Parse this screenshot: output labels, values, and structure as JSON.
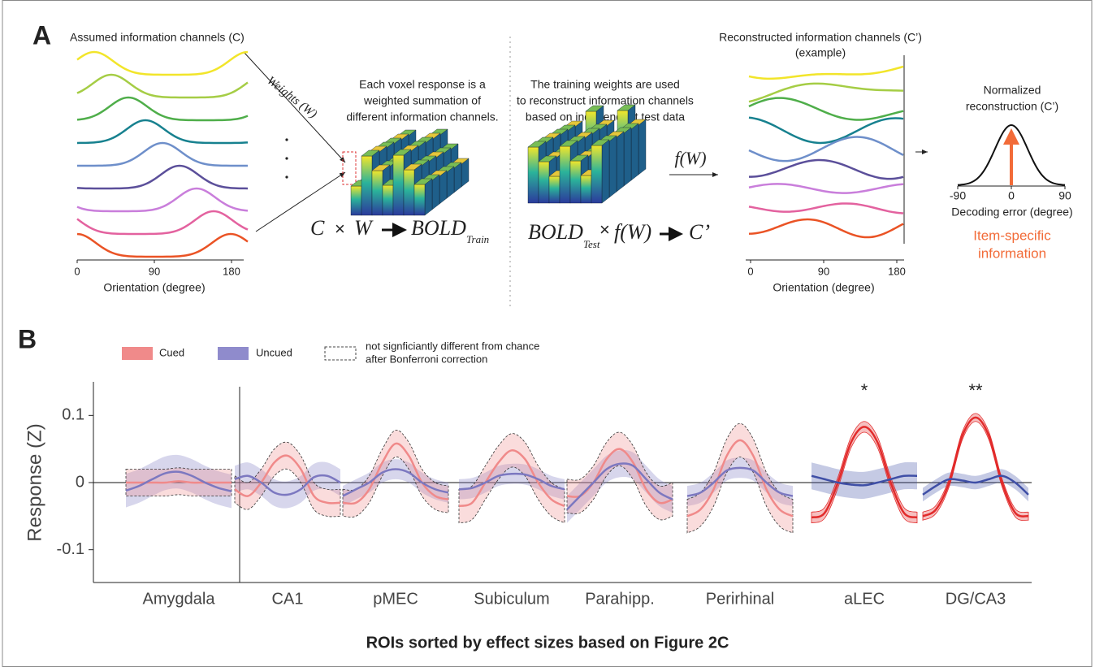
{
  "panel_a": {
    "label": "A",
    "left_title": "Assumed information channels (C)",
    "left_xticks": [
      0,
      90,
      180
    ],
    "x_label": "Orientation (degree)",
    "weights_label": "Weights (W)",
    "train_note": [
      "Each voxel response is a",
      "weighted summation of",
      "different information channels."
    ],
    "train_formula": {
      "c": "C",
      "times": "×",
      "w": "W",
      "bold": "BOLD",
      "sub": "Train"
    },
    "test_note": [
      "The training weights are used",
      "to reconstruct information channels",
      "based on independent test data"
    ],
    "fw": "f(W)",
    "test_formula": {
      "bold": "BOLD",
      "sub": "Test",
      "times": "×",
      "fw": "f(W)",
      "c": "C’"
    },
    "right_title": [
      "Reconstructed information channels (C’)",
      "(example)"
    ],
    "right_xticks": [
      0,
      90,
      180
    ],
    "norm_title": [
      "Normalized",
      "reconstruction (C’)"
    ],
    "norm_xticks": [
      -90,
      0,
      90
    ],
    "norm_x_label": "Decoding error (degree)",
    "item_label": [
      "Item-specific",
      "information"
    ]
  },
  "panel_b": {
    "label": "B",
    "legend": {
      "cued": "Cued",
      "uncued": "Uncued",
      "dashed_note": [
        "not signficiantly different from chance",
        "after Bonferroni correction"
      ]
    },
    "y_label": "Response (Z)",
    "ylim": [
      -0.15,
      0.15
    ],
    "yticks": [
      0.1,
      0,
      -0.1
    ],
    "x": [
      -90,
      -67.5,
      -45,
      -22.5,
      0,
      22.5,
      45,
      67.5,
      90
    ],
    "x_label": "ROIs sorted by effect sizes based on Figure 2C",
    "rois": [
      {
        "name": "Amygdala",
        "dashed": true,
        "cued_color": "#f08a8a",
        "uncued_color": "#7c78c0",
        "cued": [
          0,
          0,
          0,
          0,
          0.002,
          0,
          0,
          0,
          0
        ],
        "cued_ci": 0.02,
        "uncued": [
          -0.012,
          -0.005,
          0.005,
          0.014,
          0.016,
          0.01,
          0,
          -0.008,
          -0.013
        ],
        "uncued_ci": 0.025
      },
      {
        "name": "CA1",
        "dashed": true,
        "cued_color": "#f08a8a",
        "uncued_color": "#7c78c0",
        "cued": [
          -0.01,
          -0.02,
          0,
          0.03,
          0.04,
          0.02,
          -0.02,
          -0.03,
          -0.03
        ],
        "cued_ci": 0.02,
        "uncued": [
          0.005,
          0.01,
          0,
          -0.015,
          -0.018,
          -0.01,
          0.008,
          0.01,
          0
        ],
        "uncued_ci": 0.02
      },
      {
        "name": "pMEC",
        "dashed": true,
        "cued_color": "#f08a8a",
        "uncued_color": "#7c78c0",
        "cued": [
          -0.03,
          -0.03,
          -0.01,
          0.03,
          0.058,
          0.04,
          0,
          -0.02,
          -0.025
        ],
        "cued_ci": 0.02,
        "uncued": [
          -0.02,
          -0.01,
          0,
          0.015,
          0.02,
          0.015,
          0,
          -0.01,
          -0.015
        ],
        "uncued_ci": 0.015
      },
      {
        "name": "Subiculum",
        "dashed": true,
        "cued_color": "#f08a8a",
        "uncued_color": "#7c78c0",
        "cued": [
          -0.035,
          -0.03,
          0,
          0.03,
          0.048,
          0.035,
          0,
          -0.025,
          -0.035
        ],
        "cued_ci": 0.025,
        "uncued": [
          -0.01,
          -0.008,
          0,
          0.01,
          0.013,
          0.012,
          0.005,
          -0.005,
          -0.01
        ],
        "uncued_ci": 0.015
      },
      {
        "name": "Parahipp.",
        "dashed": true,
        "cued_color": "#f08a8a",
        "uncued_color": "#7c78c0",
        "cued": [
          -0.02,
          -0.02,
          0,
          0.035,
          0.05,
          0.03,
          -0.01,
          -0.03,
          -0.025
        ],
        "cued_ci": 0.025,
        "uncued": [
          -0.04,
          -0.02,
          0,
          0.02,
          0.028,
          0.025,
          0.005,
          -0.015,
          -0.025
        ],
        "uncued_ci": 0.02
      },
      {
        "name": "Perirhinal",
        "dashed": true,
        "cued_color": "#f08a8a",
        "uncued_color": "#7c78c0",
        "cued": [
          -0.05,
          -0.04,
          -0.01,
          0.04,
          0.063,
          0.04,
          -0.01,
          -0.04,
          -0.05
        ],
        "cued_ci": 0.025,
        "uncued": [
          -0.02,
          -0.015,
          0,
          0.018,
          0.022,
          0.018,
          0,
          -0.015,
          -0.02
        ],
        "uncued_ci": 0.015
      },
      {
        "name": "aLEC",
        "dashed": false,
        "stars": "*",
        "cued_color": "#e22b2b",
        "uncued_color": "#3f4fa6",
        "cued": [
          -0.052,
          -0.045,
          0,
          0.06,
          0.083,
          0.06,
          0,
          -0.045,
          -0.052
        ],
        "cued_ci": 0.008,
        "uncued": [
          0.01,
          0.005,
          0,
          -0.003,
          -0.004,
          0,
          0.005,
          0.01,
          0.01
        ],
        "uncued_ci": 0.02
      },
      {
        "name": "DG/CA3",
        "dashed": false,
        "stars": "**",
        "cued_color": "#e22b2b",
        "uncued_color": "#3f4fa6",
        "cued": [
          -0.05,
          -0.04,
          0,
          0.07,
          0.097,
          0.07,
          0,
          -0.045,
          -0.05
        ],
        "cued_ci": 0.006,
        "uncued": [
          -0.018,
          -0.005,
          0.005,
          0.003,
          0,
          0.005,
          0.01,
          0,
          -0.018
        ],
        "uncued_ci": 0.01
      }
    ]
  }
}
